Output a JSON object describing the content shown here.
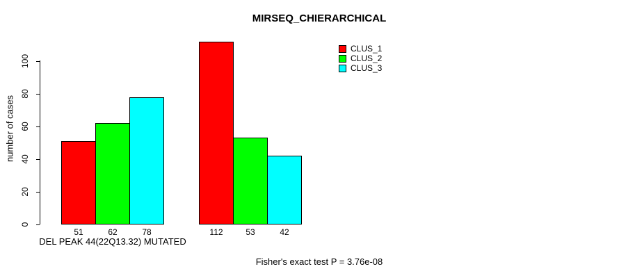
{
  "chart_data": {
    "type": "bar",
    "title": "MIRSEQ_CHIERARCHICAL",
    "ylabel": "number of cases",
    "xlabel": "",
    "ylim": [
      0,
      100
    ],
    "yticks": [
      0,
      20,
      40,
      60,
      80,
      100
    ],
    "grid": false,
    "legend_position": "top-right",
    "categories": [
      "DEL PEAK 44(22Q13.32) MUTATED",
      ""
    ],
    "series": [
      {
        "name": "CLUS_1",
        "color": "#ff0000",
        "values": [
          51,
          112
        ]
      },
      {
        "name": "CLUS_2",
        "color": "#00ff00",
        "values": [
          62,
          53
        ]
      },
      {
        "name": "CLUS_3",
        "color": "#00ffff",
        "values": [
          78,
          42
        ]
      }
    ],
    "bar_value_labels": [
      [
        51,
        62,
        78
      ],
      [
        112,
        53,
        42
      ]
    ],
    "annotation": "Fisher's exact test P = 3.76e-08"
  }
}
